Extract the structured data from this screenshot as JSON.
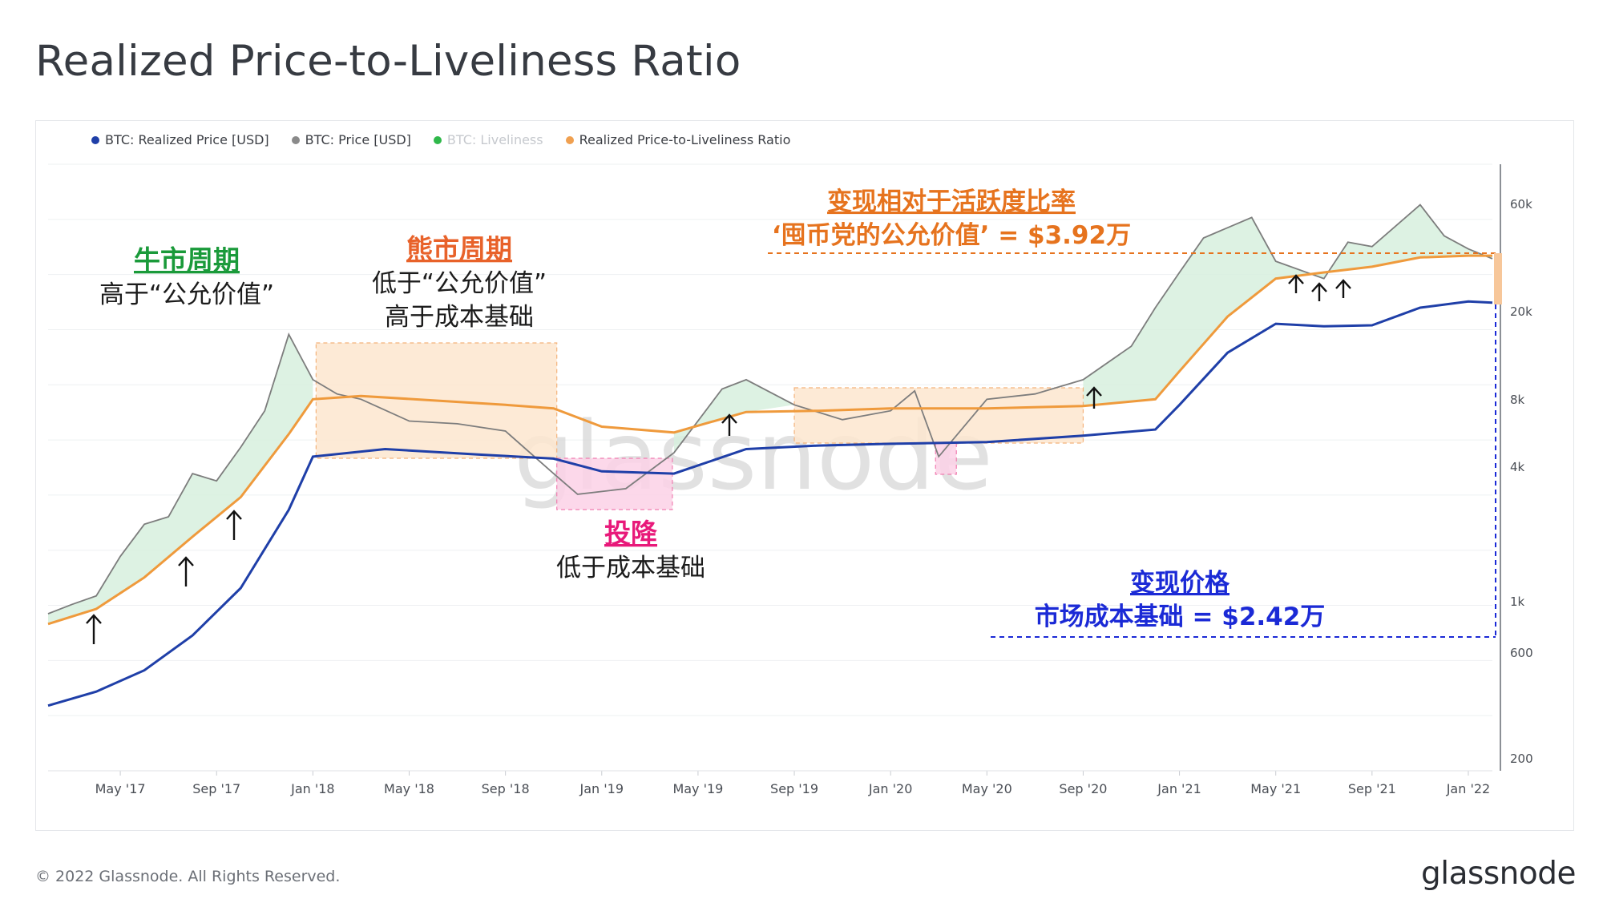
{
  "page": {
    "title": "Realized Price-to-Liveliness Ratio",
    "footer": "© 2022 Glassnode. All Rights Reserved.",
    "brand": "glassnode",
    "watermark": "glassnode"
  },
  "legend": [
    {
      "label": "BTC: Realized Price [USD]",
      "color": "#1f3fa8",
      "dim": false
    },
    {
      "label": "BTC: Price [USD]",
      "color": "#8a8a8a",
      "dim": false
    },
    {
      "label": "BTC: Liveliness",
      "color": "#2fb84a",
      "dim": true
    },
    {
      "label": "Realized Price-to-Liveliness Ratio",
      "color": "#f0a050",
      "dim": false
    }
  ],
  "colors": {
    "realized": "#1f3fa8",
    "price": "#7d7d7d",
    "ratio": "#ef9a3c",
    "green_fill": "#d7f0de",
    "green_dash": "#6cc48a",
    "orange_box": "#fde6cf",
    "pink_box": "#fbd1e6",
    "bull": "#1a9a3a",
    "bear": "#e8622a",
    "capit": "#e8197a",
    "blue_note": "#1b2ad6",
    "orange_note": "#e6731e"
  },
  "annotations": {
    "bull_title": "牛市周期",
    "bull_line1": "高于“公允价值”",
    "bear_title": "熊市周期",
    "bear_line1": "低于“公允价值”",
    "bear_line2": "高于成本基础",
    "capit_title": "投降",
    "capit_line1": "低于成本基础",
    "ratio_title": "变现相对于活跃度比率",
    "ratio_line1": "‘囤币党的公允价值’ = $3.92万",
    "realized_title": "变现价格",
    "realized_line1": "市场成本基础 = $2.42万"
  },
  "chart_data": {
    "type": "line",
    "x_ticks": [
      "May '17",
      "Sep '17",
      "Jan '18",
      "May '18",
      "Sep '18",
      "Jan '19",
      "May '19",
      "Sep '19",
      "Jan '20",
      "May '20",
      "Sep '20",
      "Jan '21",
      "May '21",
      "Sep '21",
      "Jan '22"
    ],
    "y_ticks": [
      "60k",
      "20k",
      "8k",
      "4k",
      "1k",
      "600",
      "200"
    ],
    "y_scale": "log",
    "x_range": [
      "2017-02",
      "2022-02"
    ],
    "y_range": [
      200,
      100000
    ],
    "series": [
      {
        "name": "BTC: Realized Price [USD]",
        "x": [
          "2017-02",
          "2017-04",
          "2017-06",
          "2017-08",
          "2017-10",
          "2017-12",
          "2018-01",
          "2018-04",
          "2018-08",
          "2018-11",
          "2019-01",
          "2019-04",
          "2019-07",
          "2019-10",
          "2020-01",
          "2020-05",
          "2020-09",
          "2020-12",
          "2021-01",
          "2021-03",
          "2021-05",
          "2021-07",
          "2021-09",
          "2021-11",
          "2022-01",
          "2022-02"
        ],
        "values": [
          390,
          450,
          560,
          800,
          1300,
          2900,
          5000,
          5400,
          5100,
          4900,
          4300,
          4200,
          5400,
          5600,
          5700,
          5800,
          6200,
          6600,
          8500,
          14500,
          19500,
          19000,
          19200,
          23000,
          24500,
          24200
        ]
      },
      {
        "name": "BTC: Price [USD]",
        "x": [
          "2017-02",
          "2017-03",
          "2017-04",
          "2017-05",
          "2017-06",
          "2017-07",
          "2017-08",
          "2017-09",
          "2017-10",
          "2017-11",
          "2017-12",
          "2018-01",
          "2018-02",
          "2018-03",
          "2018-05",
          "2018-07",
          "2018-09",
          "2018-11",
          "2018-12",
          "2019-02",
          "2019-04",
          "2019-06",
          "2019-07",
          "2019-09",
          "2019-11",
          "2020-01",
          "2020-02",
          "2020-03",
          "2020-05",
          "2020-07",
          "2020-09",
          "2020-11",
          "2020-12",
          "2021-01",
          "2021-02",
          "2021-04",
          "2021-05",
          "2021-07",
          "2021-08",
          "2021-09",
          "2021-11",
          "2021-12",
          "2022-01",
          "2022-02"
        ],
        "values": [
          1000,
          1100,
          1200,
          1800,
          2500,
          2700,
          4200,
          3900,
          5500,
          8000,
          17500,
          11000,
          9500,
          9000,
          7200,
          7000,
          6500,
          4200,
          3400,
          3600,
          5200,
          10000,
          11000,
          8500,
          7300,
          8000,
          9800,
          5000,
          9000,
          9500,
          11000,
          15500,
          23000,
          33000,
          47000,
          58000,
          37000,
          31000,
          45000,
          43000,
          66000,
          48000,
          42000,
          38000
        ]
      },
      {
        "name": "Realized Price-to-Liveliness Ratio",
        "x": [
          "2017-02",
          "2017-04",
          "2017-06",
          "2017-08",
          "2017-10",
          "2017-12",
          "2018-01",
          "2018-03",
          "2018-06",
          "2018-09",
          "2018-11",
          "2019-01",
          "2019-04",
          "2019-07",
          "2019-10",
          "2020-01",
          "2020-05",
          "2020-09",
          "2020-12",
          "2021-01",
          "2021-03",
          "2021-05",
          "2021-07",
          "2021-09",
          "2021-11",
          "2022-01",
          "2022-02"
        ],
        "values": [
          900,
          1050,
          1450,
          2200,
          3300,
          6300,
          9000,
          9300,
          8900,
          8500,
          8200,
          6800,
          6400,
          7900,
          8000,
          8200,
          8200,
          8400,
          9000,
          12000,
          21000,
          31000,
          33000,
          35000,
          38500,
          39200,
          39200
        ]
      }
    ]
  }
}
